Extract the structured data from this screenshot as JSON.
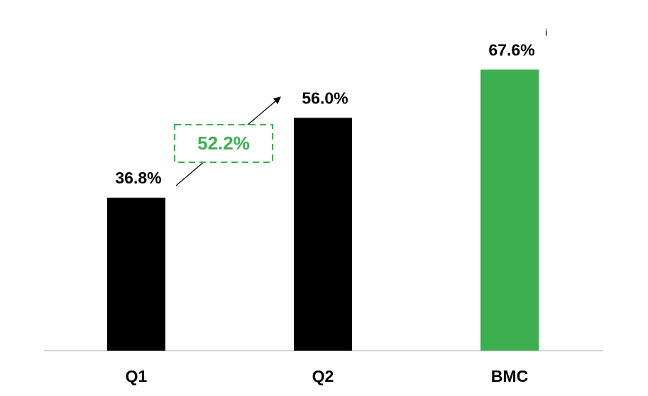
{
  "chart_data": {
    "type": "bar",
    "categories": [
      "Q1",
      "Q2",
      "BMC"
    ],
    "values": [
      36.8,
      56.0,
      67.6
    ],
    "value_labels": [
      "36.8%",
      "56.0%",
      "67.6%"
    ],
    "colors": [
      "#000000",
      "#000000",
      "#3daf4f"
    ],
    "ylim": [
      0,
      84
    ],
    "annotation": "52.2%",
    "annotation_color": "#3daf4f",
    "footnote_marker": "i"
  }
}
